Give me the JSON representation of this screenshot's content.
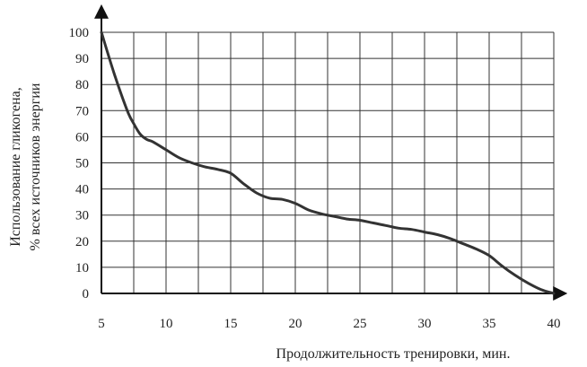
{
  "chart_data": {
    "type": "line",
    "title": "",
    "xlabel": "Продолжительность тренировки, мин.",
    "ylabel_line1": "Использование гликогена,",
    "ylabel_line2": "%  всех источников энергии",
    "xlim": [
      5,
      40
    ],
    "ylim": [
      0,
      100
    ],
    "xticks": [
      5,
      10,
      15,
      20,
      25,
      30,
      35,
      40
    ],
    "xtick_labels": [
      "5",
      "10",
      "15",
      "20",
      "25",
      "30",
      "35",
      "40"
    ],
    "yticks": [
      0,
      10,
      20,
      30,
      40,
      50,
      60,
      70,
      80,
      90,
      100
    ],
    "ytick_labels": [
      "0",
      "10",
      "20",
      "30",
      "40",
      "50",
      "60",
      "70",
      "80",
      "90",
      "100"
    ],
    "grid": true,
    "legend": "none",
    "series": [
      {
        "color": "#333333",
        "x": [
          5,
          6,
          7,
          7.5,
          8,
          8.5,
          9,
          10,
          11,
          12,
          13,
          14,
          15,
          16,
          17,
          18,
          19,
          20,
          21,
          22,
          23,
          24,
          25,
          26,
          27,
          28,
          29,
          30,
          31,
          32,
          33,
          34,
          35,
          36,
          37,
          38,
          39,
          40
        ],
        "y": [
          100,
          84,
          70,
          65,
          61,
          59,
          58,
          55,
          52,
          50,
          48.5,
          47.5,
          46,
          42,
          38.5,
          36.5,
          36,
          34.5,
          32,
          30.5,
          29.5,
          28.5,
          28,
          27,
          26,
          25,
          24.5,
          23.5,
          22.5,
          21,
          19,
          17,
          14.5,
          10.5,
          7,
          4,
          1.5,
          0
        ]
      }
    ]
  }
}
